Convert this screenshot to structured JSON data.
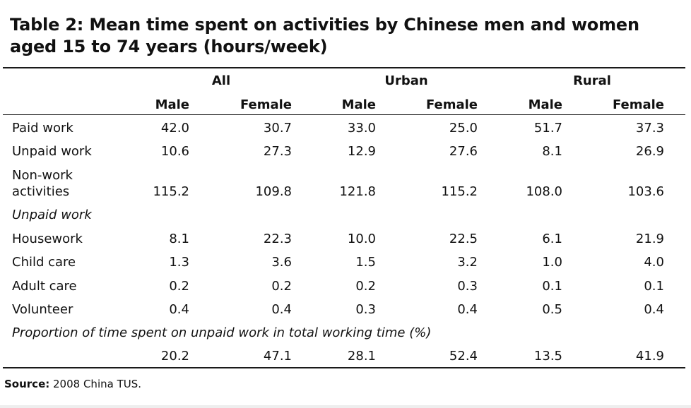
{
  "title": "Table 2: Mean time spent on activities by Chinese men and women aged 15 to 74 years (hours/week)",
  "groups": [
    "All",
    "Urban",
    "Rural"
  ],
  "subheaders": [
    "Male",
    "Female",
    "Male",
    "Female",
    "Male",
    "Female"
  ],
  "rows": [
    {
      "label": "Paid work",
      "values": [
        "42.0",
        "30.7",
        "33.0",
        "25.0",
        "51.7",
        "37.3"
      ]
    },
    {
      "label": "Unpaid work",
      "values": [
        "10.6",
        "27.3",
        "12.9",
        "27.6",
        "8.1",
        "26.9"
      ]
    },
    {
      "label_line1": "Non-work",
      "label_line2": "activities",
      "values": [
        "115.2",
        "109.8",
        "121.8",
        "115.2",
        "108.0",
        "103.6"
      ]
    }
  ],
  "section_unpaid": "Unpaid work",
  "unpaid_rows": [
    {
      "label": "Housework",
      "values": [
        "8.1",
        "22.3",
        "10.0",
        "22.5",
        "6.1",
        "21.9"
      ]
    },
    {
      "label": "Child care",
      "values": [
        "1.3",
        "3.6",
        "1.5",
        "3.2",
        "1.0",
        "4.0"
      ]
    },
    {
      "label": "Adult care",
      "values": [
        "0.2",
        "0.2",
        "0.2",
        "0.3",
        "0.1",
        "0.1"
      ]
    },
    {
      "label": "Volunteer",
      "values": [
        "0.4",
        "0.4",
        "0.3",
        "0.4",
        "0.5",
        "0.4"
      ]
    }
  ],
  "section_proportion": "Proportion of time spent on unpaid work in total working time (%)",
  "proportion_values": [
    "20.2",
    "47.1",
    "28.1",
    "52.4",
    "13.5",
    "41.9"
  ],
  "source_label": "Source:",
  "source_text": " 2008 China TUS."
}
